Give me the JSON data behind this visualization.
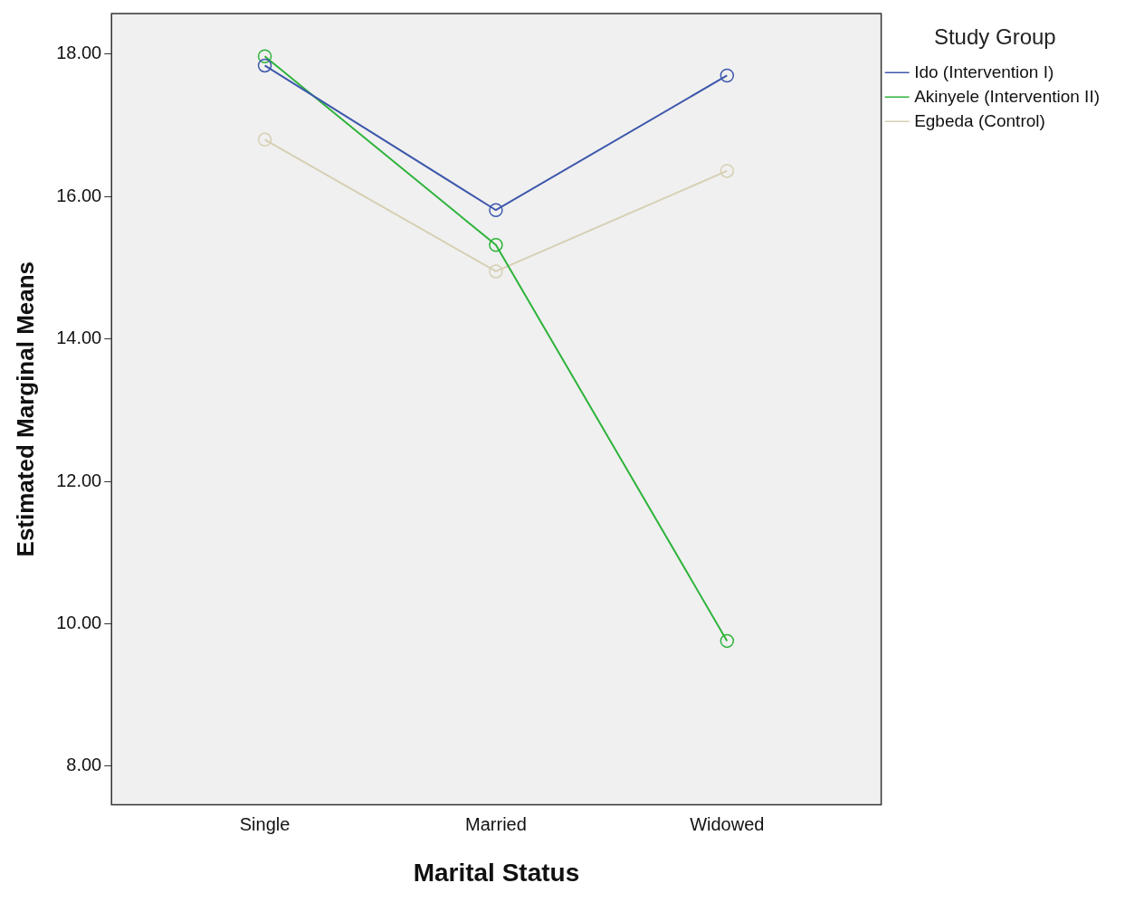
{
  "chart_data": {
    "type": "line",
    "xlabel": "Marital Status",
    "ylabel": "Estimated Marginal Means",
    "legend_title": "Study Group",
    "legend": "right",
    "marker": "circle",
    "grid": false,
    "categories": [
      "Single",
      "Married",
      "Widowed"
    ],
    "series": [
      {
        "name": "Ido (Intervention I)",
        "color": "#3e58ac",
        "values": [
          17.84,
          15.81,
          17.7
        ]
      },
      {
        "name": "Akinyele (Intervention II)",
        "color": "#2db33a",
        "values": [
          17.97,
          15.32,
          9.76
        ]
      },
      {
        "name": "Egbeda (Control)",
        "color": "#d6d0b4",
        "values": [
          16.8,
          14.95,
          16.36
        ]
      }
    ],
    "ylim": [
      7.46,
      18.57
    ],
    "yticks": [
      {
        "value": 8,
        "label": "8.00"
      },
      {
        "value": 10,
        "label": "10.00"
      },
      {
        "value": 12,
        "label": "12.00"
      },
      {
        "value": 14,
        "label": "14.00"
      },
      {
        "value": 16,
        "label": "16.00"
      },
      {
        "value": 18,
        "label": "18.00"
      }
    ]
  }
}
